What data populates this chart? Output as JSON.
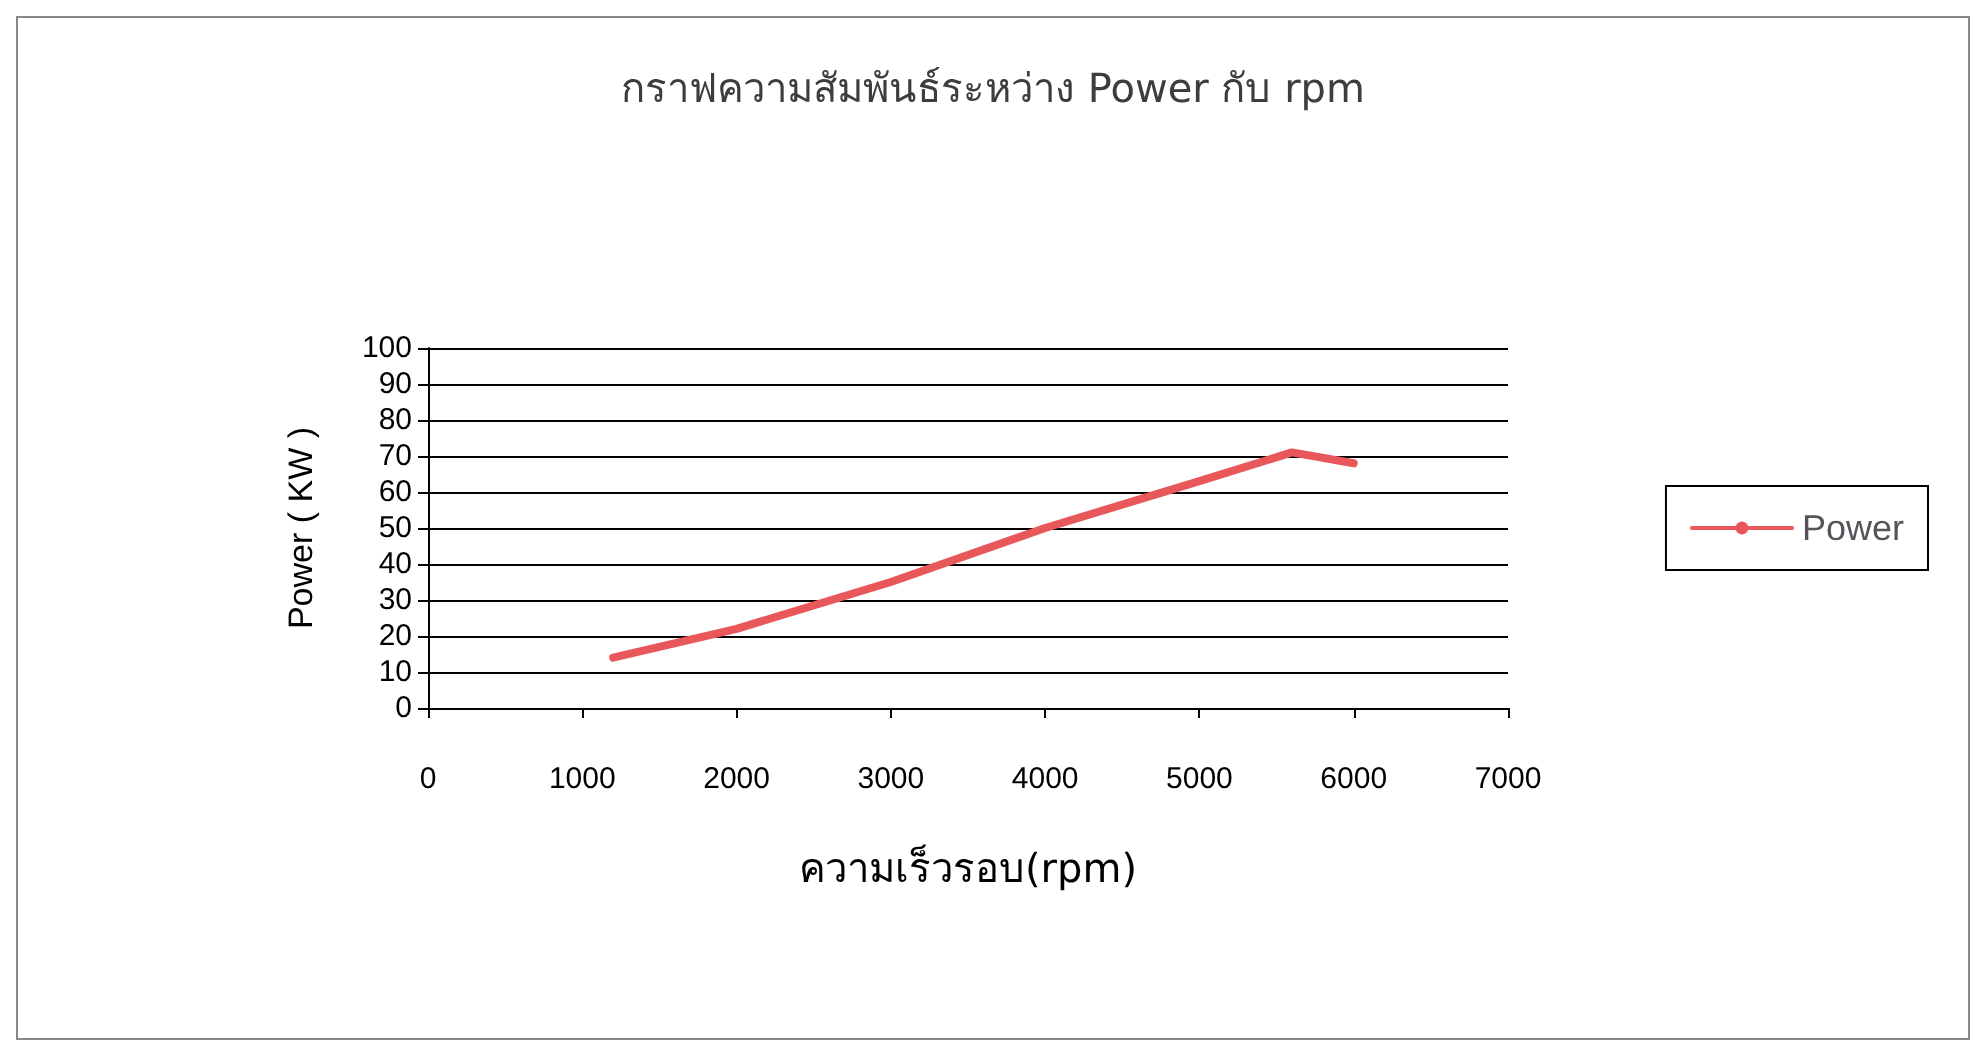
{
  "chart_data": {
    "type": "line",
    "title": "กราฟความสัมพันธ์ระหว่าง Power กับ rpm",
    "xlabel": "ความเร็วรอบ(rpm)",
    "ylabel": "Power ( KW )",
    "x": [
      1200,
      2000,
      3000,
      4000,
      5000,
      5600,
      6000
    ],
    "series": [
      {
        "name": "Power",
        "color": "#e8575a",
        "values": [
          14,
          22,
          35,
          50,
          63,
          71,
          68
        ]
      }
    ],
    "xlim": [
      0,
      7000
    ],
    "xticks": [
      0,
      1000,
      2000,
      3000,
      4000,
      5000,
      6000,
      7000
    ],
    "ylim": [
      0,
      100
    ],
    "yticks": [
      0,
      10,
      20,
      30,
      40,
      50,
      60,
      70,
      80,
      90,
      100
    ],
    "grid": "y",
    "legend": "right",
    "marker": "none",
    "line_style": "solid"
  }
}
